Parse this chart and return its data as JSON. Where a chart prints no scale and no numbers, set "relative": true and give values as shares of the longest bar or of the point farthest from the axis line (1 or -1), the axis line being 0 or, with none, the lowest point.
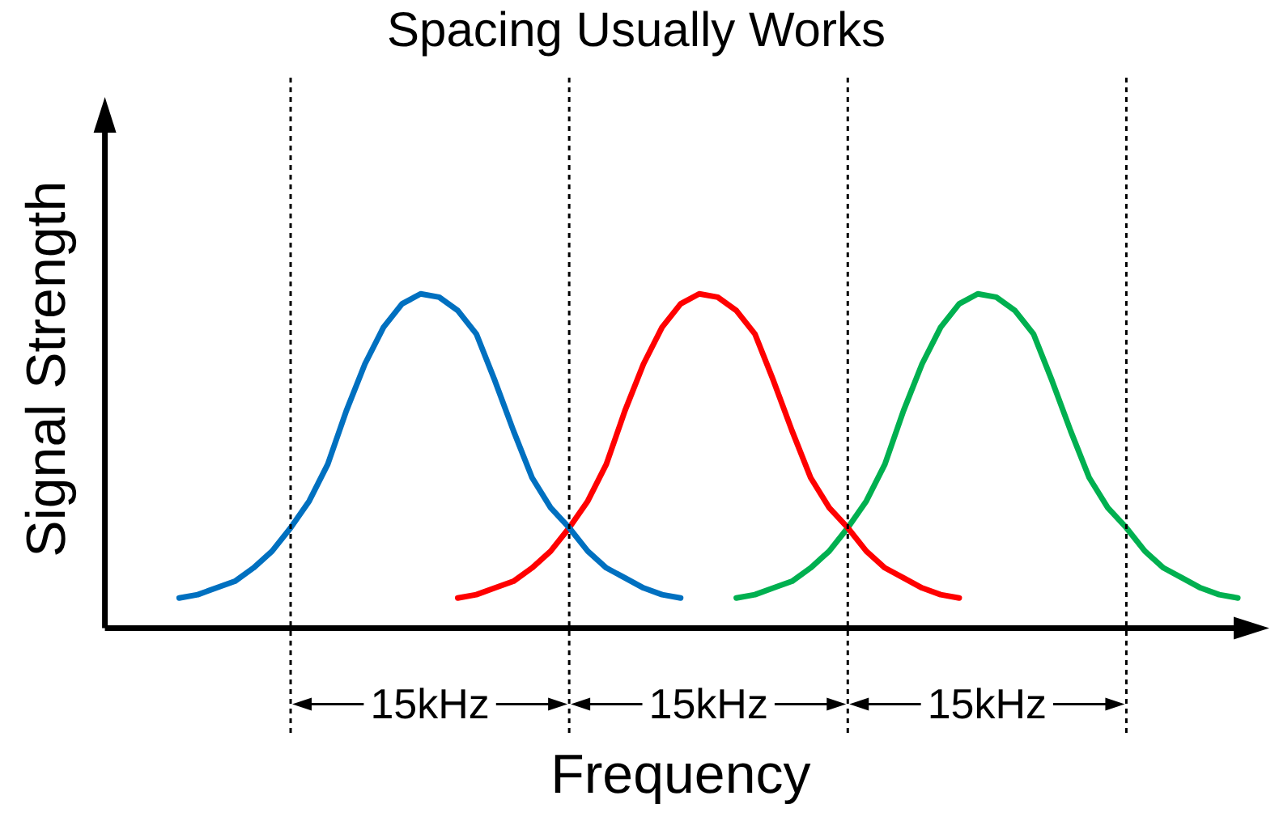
{
  "chart_data": {
    "type": "line",
    "title": "Spacing Usually Works",
    "xlabel": "Frequency",
    "ylabel": "Signal Strength",
    "relative": true,
    "legend": false,
    "grid": "x",
    "marker": "none",
    "line_style": "solid",
    "categories": [
      null,
      null,
      null,
      null,
      null,
      null,
      null,
      null,
      null,
      null,
      null,
      null,
      null,
      null,
      null,
      null,
      null,
      null,
      null,
      null,
      null,
      null,
      null,
      null,
      null,
      null,
      null,
      null,
      null,
      null,
      null,
      null,
      null,
      null,
      null,
      null,
      null,
      null,
      null,
      null,
      null,
      null,
      null,
      null,
      null,
      null,
      null,
      null,
      null,
      null,
      null,
      null,
      null,
      null,
      null,
      null,
      null,
      null,
      null,
      null,
      null,
      null,
      null
    ],
    "series": [
      {
        "color": "#0070c0",
        "values": [
          null,
          null,
          null,
          null,
          0.09,
          0.1,
          0.12,
          0.14,
          0.18,
          0.23,
          0.3,
          0.38,
          0.49,
          0.65,
          0.79,
          0.9,
          0.97,
          1,
          0.99,
          0.95,
          0.88,
          0.74,
          0.59,
          0.45,
          0.36,
          0.3,
          0.23,
          0.18,
          0.15,
          0.12,
          0.1,
          0.09,
          null,
          null,
          null,
          null,
          null,
          null,
          null,
          null,
          null,
          null,
          null,
          null,
          null,
          null,
          null,
          null,
          null,
          null,
          null,
          null,
          null,
          null,
          null,
          null,
          null,
          null,
          null,
          null,
          null,
          null,
          null
        ]
      },
      {
        "color": "#ff0000",
        "values": [
          null,
          null,
          null,
          null,
          null,
          null,
          null,
          null,
          null,
          null,
          null,
          null,
          null,
          null,
          null,
          null,
          null,
          null,
          null,
          0.09,
          0.1,
          0.12,
          0.14,
          0.18,
          0.23,
          0.3,
          0.38,
          0.49,
          0.65,
          0.79,
          0.9,
          0.97,
          1,
          0.99,
          0.95,
          0.88,
          0.74,
          0.59,
          0.45,
          0.36,
          0.3,
          0.23,
          0.18,
          0.15,
          0.12,
          0.1,
          0.09,
          null,
          null,
          null,
          null,
          null,
          null,
          null,
          null,
          null,
          null,
          null,
          null,
          null,
          null,
          null,
          null
        ]
      },
      {
        "color": "#00b050",
        "values": [
          null,
          null,
          null,
          null,
          null,
          null,
          null,
          null,
          null,
          null,
          null,
          null,
          null,
          null,
          null,
          null,
          null,
          null,
          null,
          null,
          null,
          null,
          null,
          null,
          null,
          null,
          null,
          null,
          null,
          null,
          null,
          null,
          null,
          null,
          0.09,
          0.1,
          0.12,
          0.14,
          0.18,
          0.23,
          0.3,
          0.38,
          0.49,
          0.65,
          0.79,
          0.9,
          0.97,
          1,
          0.99,
          0.95,
          0.88,
          0.74,
          0.59,
          0.45,
          0.36,
          0.3,
          0.23,
          0.18,
          0.15,
          0.12,
          0.1,
          0.09,
          null
        ]
      }
    ],
    "annotations": [
      "15kHz",
      "15kHz",
      "15kHz"
    ]
  }
}
